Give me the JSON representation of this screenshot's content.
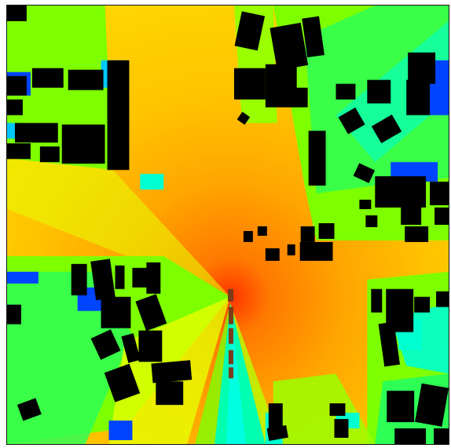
{
  "map": {
    "kind": "radio-signal-coverage-heatmap",
    "colors": {
      "peak": "#ff3300",
      "high": "#ff8a00",
      "mid_high": "#ffc400",
      "mid": "#e6ff00",
      "mid_low": "#7dff00",
      "low": "#00ff7a",
      "lower": "#00ffd0",
      "lowest": "#0044ff",
      "building": "#000000",
      "transmitter": "#7a3b1a",
      "frame": "#111111"
    },
    "legend": "none",
    "labels": "none"
  }
}
